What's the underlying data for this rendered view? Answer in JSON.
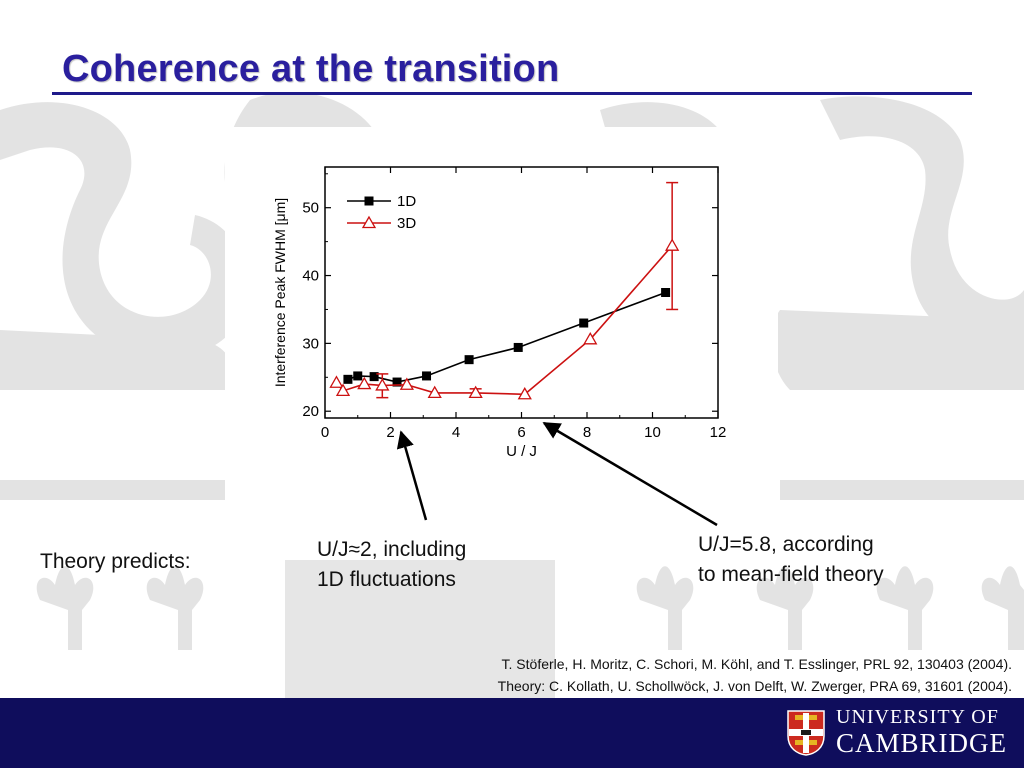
{
  "slide": {
    "title": "Coherence at the transition",
    "theory_label": "Theory predicts:",
    "annotation_1": [
      "U/J≈2, including",
      "1D fluctuations"
    ],
    "annotation_2": [
      "U/J=5.8, according",
      "to mean-field theory"
    ],
    "references": [
      "T. Stöferle, H. Moritz, C. Schori, M. Köhl, and T. Esslinger, PRL 92, 130403 (2004).",
      "Theory: C. Kollath, U. Schollwöck, J. von Delft, W. Zwerger, PRA 69, 31601 (2004)."
    ],
    "footer": {
      "line1": "UNIVERSITY OF",
      "line2": "CAMBRIDGE"
    },
    "colors": {
      "title": "#2a1f9e",
      "footer": "#0f0d5c",
      "series_1d": "#000000",
      "series_3d": "#cc1111"
    }
  },
  "chart_data": {
    "type": "line",
    "xlabel": "U / J",
    "ylabel": "Interference Peak FWHM [μm]",
    "xlim": [
      0,
      12
    ],
    "ylim": [
      19,
      56
    ],
    "xticks": [
      "0",
      "2",
      "4",
      "6",
      "8",
      "10",
      "12"
    ],
    "yticks": [
      "20",
      "30",
      "40",
      "50"
    ],
    "legend": "top-left",
    "series": [
      {
        "name": "1D",
        "marker": "square-filled",
        "x": [
          0.7,
          1.0,
          1.5,
          2.2,
          3.1,
          4.4,
          5.9,
          7.9,
          10.4
        ],
        "y": [
          24.7,
          25.2,
          25.1,
          24.3,
          25.2,
          27.6,
          29.4,
          33.0,
          37.5
        ]
      },
      {
        "name": "3D",
        "marker": "triangle-open",
        "x": [
          0.35,
          0.55,
          1.2,
          1.75,
          2.5,
          3.35,
          4.6,
          6.1,
          8.1,
          10.6
        ],
        "y": [
          24.2,
          23.0,
          24.0,
          23.8,
          23.9,
          22.7,
          22.7,
          22.5,
          30.6,
          44.4
        ],
        "errors": [
          {
            "x": 1.75,
            "low": 22.0,
            "high": 25.5
          },
          {
            "x": 4.6,
            "low": 22.2,
            "high": 23.3
          },
          {
            "x": 10.6,
            "low": 35.0,
            "high": 53.7
          }
        ]
      }
    ]
  }
}
